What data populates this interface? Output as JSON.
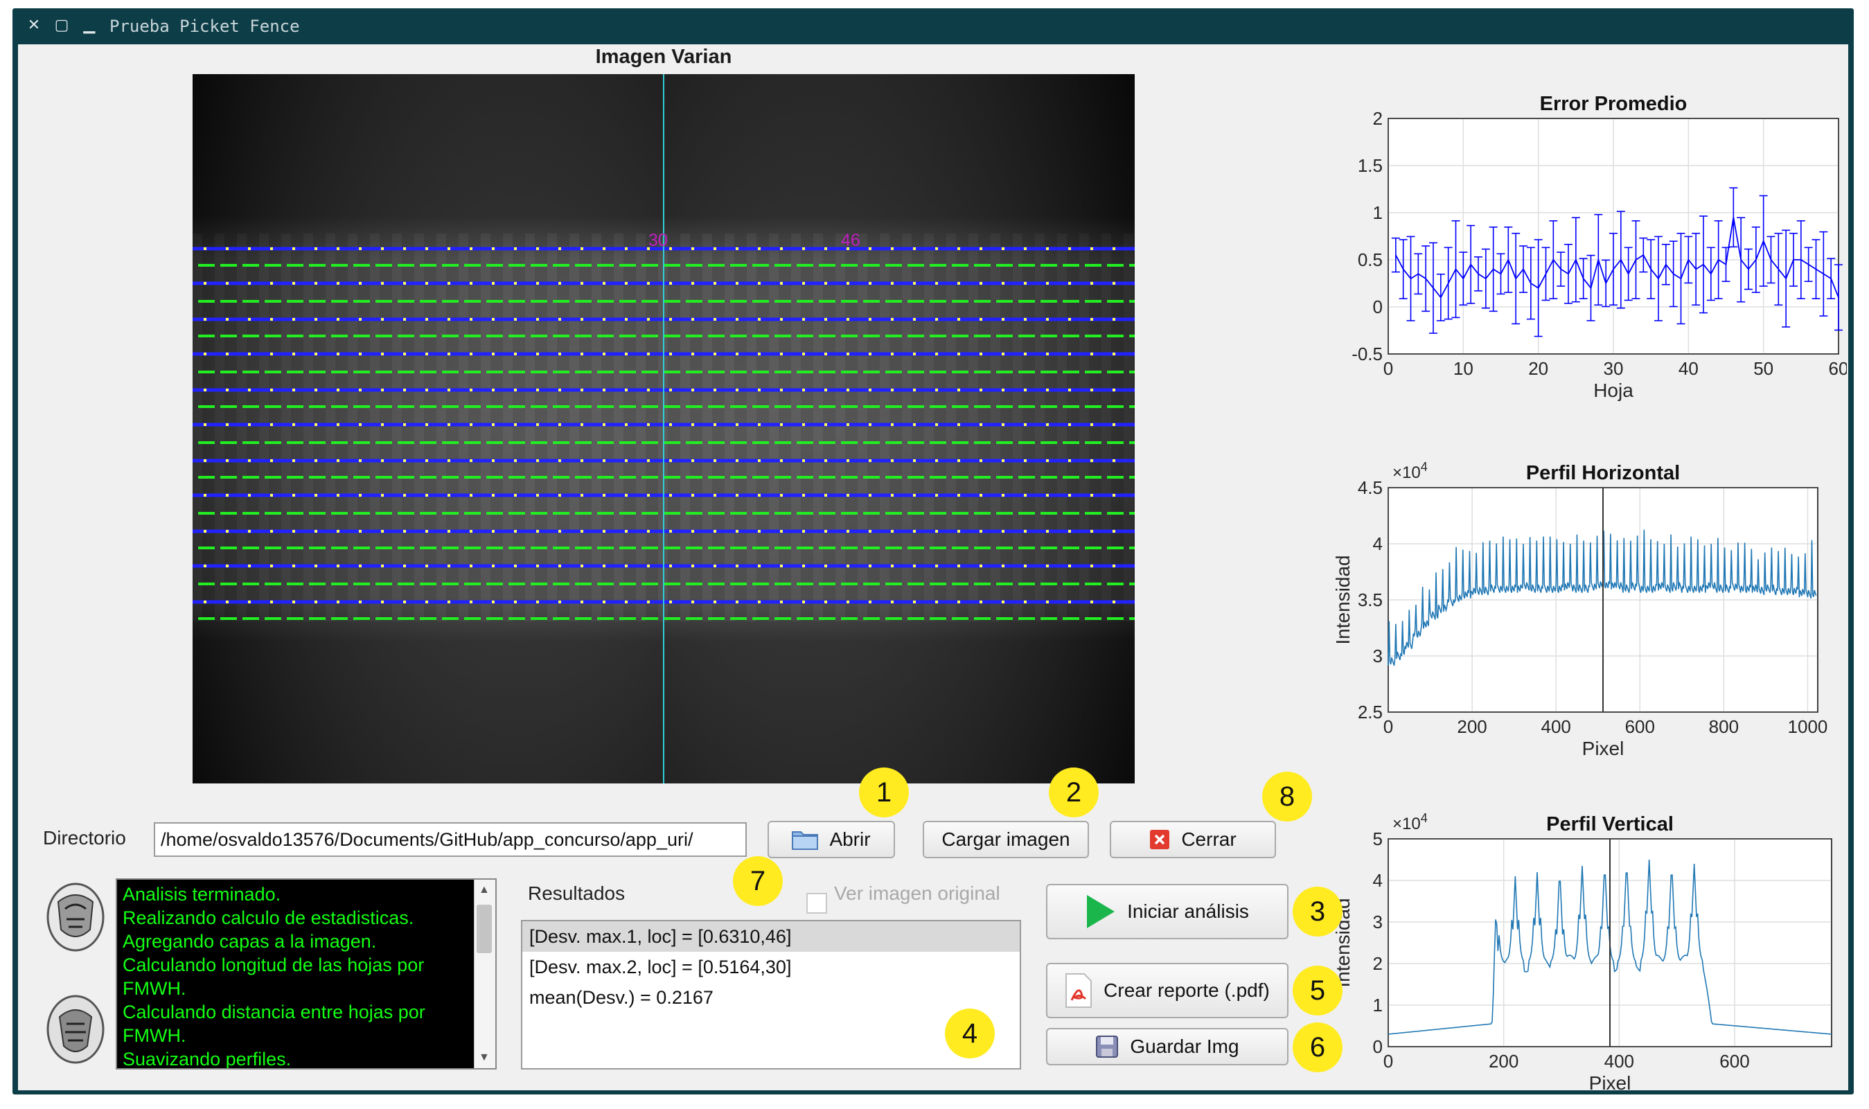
{
  "window": {
    "title": "Prueba Picket Fence"
  },
  "varian": {
    "title": "Imagen Varian",
    "marker_labels": [
      "30",
      "46"
    ]
  },
  "chart_data": [
    {
      "type": "line",
      "title": "Error Promedio",
      "xlabel": "Hoja",
      "ylabel": "",
      "xlim": [
        0,
        60
      ],
      "ylim": [
        -0.5,
        2
      ],
      "xticks": [
        "0",
        "10",
        "20",
        "30",
        "40",
        "50",
        "60"
      ],
      "yticks": [
        "-0.5",
        "0",
        "0.5",
        "1",
        "1.5",
        "2"
      ],
      "grid": true,
      "series": [
        {
          "error_bars": true,
          "x": [
            1,
            2,
            3,
            4,
            5,
            6,
            7,
            8,
            9,
            10,
            11,
            12,
            13,
            14,
            15,
            16,
            17,
            18,
            19,
            20,
            21,
            22,
            23,
            24,
            25,
            26,
            27,
            28,
            29,
            30,
            31,
            32,
            33,
            34,
            35,
            36,
            37,
            38,
            39,
            40,
            41,
            42,
            43,
            44,
            45,
            46,
            47,
            48,
            49,
            50,
            51,
            52,
            53,
            54,
            55,
            56,
            57,
            58,
            59,
            60
          ],
          "y": [
            0.55,
            0.4,
            0.3,
            0.35,
            0.3,
            0.2,
            0.1,
            0.25,
            0.4,
            0.3,
            0.45,
            0.35,
            0.3,
            0.4,
            0.35,
            0.5,
            0.3,
            0.4,
            0.25,
            0.2,
            0.35,
            0.5,
            0.4,
            0.35,
            0.5,
            0.3,
            0.2,
            0.5,
            0.25,
            0.4,
            0.5,
            0.35,
            0.5,
            0.55,
            0.4,
            0.3,
            0.45,
            0.35,
            0.3,
            0.5,
            0.4,
            0.45,
            0.35,
            0.5,
            0.45,
            0.95,
            0.5,
            0.4,
            0.5,
            0.7,
            0.5,
            0.4,
            0.3,
            0.5,
            0.5,
            0.45,
            0.4,
            0.35,
            0.3,
            0.1
          ]
        }
      ]
    },
    {
      "type": "line",
      "title": "Perfil Horizontal",
      "xlabel": "Pixel",
      "ylabel": "Intensidad",
      "exponent_label": "×10",
      "exponent_power": "4",
      "xlim": [
        0,
        1024
      ],
      "ylim": [
        2.5,
        4.5
      ],
      "xticks": [
        "0",
        "200",
        "400",
        "600",
        "800",
        "1000"
      ],
      "yticks": [
        "2.5",
        "3",
        "3.5",
        "4",
        "4.5"
      ],
      "grid": true,
      "vline_x": 512,
      "series": [
        {
          "x_start": 0,
          "x_step": 20,
          "baseline": [
            2.95,
            3.0,
            3.1,
            3.2,
            3.28,
            3.36,
            3.42,
            3.48,
            3.52,
            3.55,
            3.57,
            3.58,
            3.6,
            3.6,
            3.6,
            3.6,
            3.62,
            3.6,
            3.6,
            3.6,
            3.6,
            3.62,
            3.6,
            3.6,
            3.62,
            3.64,
            3.63,
            3.62,
            3.6,
            3.62,
            3.6,
            3.6,
            3.62,
            3.6,
            3.62,
            3.6,
            3.6,
            3.6,
            3.62,
            3.6,
            3.6,
            3.62,
            3.6,
            3.6,
            3.58,
            3.6,
            3.58,
            3.58,
            3.58,
            3.56,
            3.55,
            3.55
          ],
          "peaks": [
            3.5,
            3.55,
            3.55,
            3.6,
            3.85,
            3.95,
            4.0,
            4.1,
            4.2,
            4.2,
            4.2,
            4.25,
            4.3,
            4.3,
            4.3,
            4.35,
            4.3,
            4.3,
            4.4,
            4.3,
            4.3,
            4.3,
            4.35,
            4.3,
            4.3,
            4.4,
            4.4,
            4.35,
            4.3,
            4.4,
            4.4,
            4.3,
            4.3,
            4.35,
            4.2,
            4.3,
            4.3,
            4.25,
            4.3,
            4.3,
            4.2,
            4.2,
            4.25,
            4.2,
            4.1,
            4.2,
            4.2,
            4.15,
            4.1,
            4.2,
            4.3,
            4.3
          ]
        }
      ]
    },
    {
      "type": "line",
      "title": "Perfil Vertical",
      "xlabel": "Pixel",
      "ylabel": "Intensidad",
      "exponent_label": "×10",
      "exponent_power": "4",
      "xlim": [
        0,
        768
      ],
      "ylim": [
        0,
        5
      ],
      "xticks": [
        "0",
        "200",
        "400",
        "600"
      ],
      "yticks": [
        "0",
        "1",
        "2",
        "3",
        "4",
        "5"
      ],
      "grid": true,
      "vline_x": 384,
      "series": [
        {
          "plateau_start": 180,
          "plateau_end": 560,
          "outside_level": 0.3,
          "peak_x": [
            185,
            220,
            258,
            297,
            336,
            375,
            413,
            452,
            491,
            530
          ],
          "peak_y": [
            3.9,
            4.1,
            4.2,
            4.3,
            4.35,
            4.45,
            4.5,
            4.5,
            4.45,
            4.4
          ],
          "valley_y": 2.0
        }
      ]
    }
  ],
  "directory": {
    "label": "Directorio",
    "path": "/home/osvaldo13576/Documents/GitHub/app_concurso/app_uri/"
  },
  "buttons": {
    "open": "Abrir",
    "load": "Cargar imagen",
    "close": "Cerrar",
    "start": "Iniciar análisis",
    "report": "Crear reporte (.pdf)",
    "save": "Guardar Img"
  },
  "view_original": {
    "label": "Ver imagen original",
    "checked": false
  },
  "log_lines": [
    "Analisis terminado.",
    "Realizando calculo de estadisticas.",
    "Agregando capas a la imagen.",
    "Calculando longitud de las hojas por FMWH.",
    "Calculando distancia entre hojas por FMWH.",
    "Suavizando perfiles."
  ],
  "results": {
    "label": "Resultados",
    "items": [
      "[Desv. max.1, loc] = [0.6310,46]",
      "[Desv. max.2, loc] = [0.5164,30]",
      "mean(Desv.) = 0.2167"
    ]
  },
  "badges": [
    "1",
    "2",
    "3",
    "4",
    "5",
    "6",
    "7",
    "8"
  ],
  "colors": {
    "accent_green": "#14ff14",
    "badge": "#ffeb1f",
    "plot_blue": "#1f77b4",
    "err_blue": "#0000ff"
  }
}
